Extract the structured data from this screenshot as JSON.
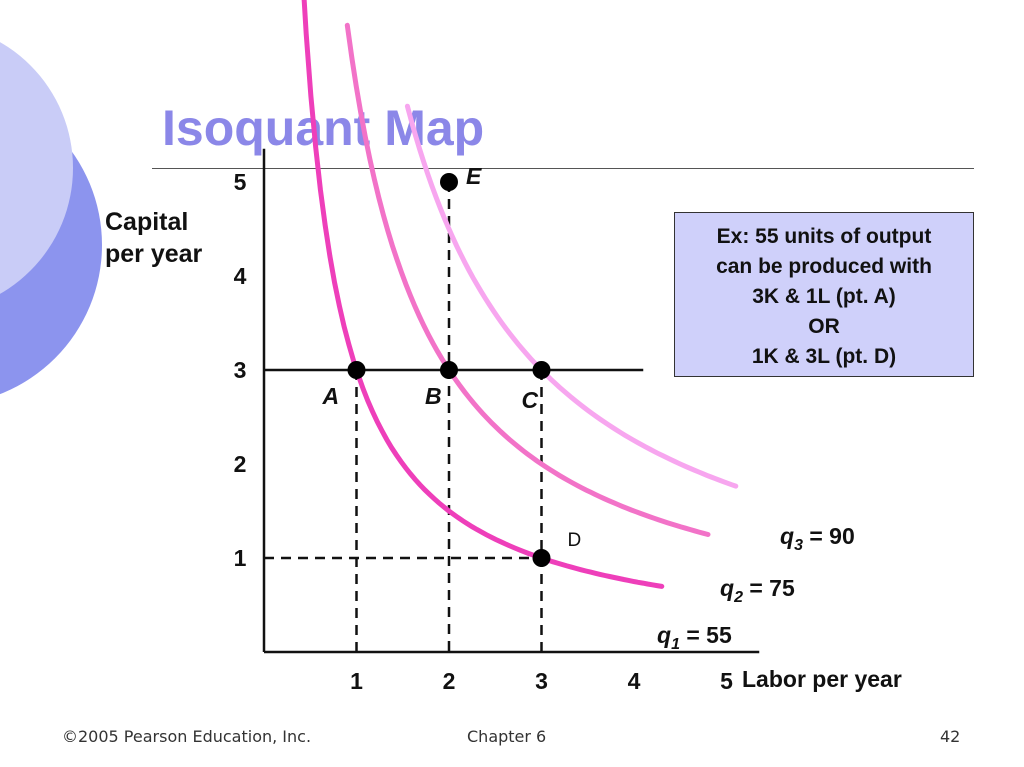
{
  "slide": {
    "title": "Isoquant Map",
    "footer_left": "©2005 Pearson Education, Inc.",
    "footer_center": "Chapter 6",
    "footer_right": "42"
  },
  "colors": {
    "title": "#8b87e8",
    "deco_light": "#c9ccf7",
    "deco_dark": "#8c94ee",
    "infobox_bg": "#cfd0fa",
    "q1": "#ee3fba",
    "q2": "#f273c8",
    "q3": "#f7a6ef"
  },
  "infobox": {
    "lines": [
      "Ex: 55 units of output",
      "can be produced with",
      "3K & 1L (pt. A)",
      "OR",
      "1K & 3L (pt. D)"
    ]
  },
  "chart_data": {
    "type": "line",
    "xlabel": "Labor per year",
    "ylabel_lines": [
      "Capital",
      "per year"
    ],
    "xlim": [
      0,
      5.3
    ],
    "ylim": [
      0,
      5.3
    ],
    "xticks": [
      1,
      2,
      3,
      4,
      5
    ],
    "yticks": [
      1,
      2,
      3,
      4,
      5
    ],
    "grid": false,
    "series": [
      {
        "id": "q1",
        "label_sym": "q",
        "label_sub": "1",
        "label_rest": " = 55",
        "k": 3,
        "x_range": [
          0.2,
          4.3
        ]
      },
      {
        "id": "q2",
        "label_sym": "q",
        "label_sub": "2",
        "label_rest": " = 75",
        "k": 6,
        "x_range": [
          0.9,
          4.8
        ]
      },
      {
        "id": "q3",
        "label_sym": "q",
        "label_sub": "3",
        "label_rest": " = 90",
        "k": 9,
        "x_range": [
          1.55,
          5.1
        ]
      }
    ],
    "points": [
      {
        "name": "A",
        "x": 1,
        "y": 3
      },
      {
        "name": "B",
        "x": 2,
        "y": 3
      },
      {
        "name": "C",
        "x": 3,
        "y": 3
      },
      {
        "name": "D",
        "x": 3,
        "y": 1
      },
      {
        "name": "E",
        "x": 2,
        "y": 5
      }
    ],
    "horizontal_line": {
      "y": 3,
      "x_range": [
        0,
        4.1
      ]
    },
    "dashed_lines": [
      {
        "from": [
          1,
          3
        ],
        "to": [
          1,
          0
        ]
      },
      {
        "from": [
          2,
          5
        ],
        "to": [
          2,
          0
        ]
      },
      {
        "from": [
          3,
          3
        ],
        "to": [
          3,
          0
        ]
      },
      {
        "from": [
          0,
          1
        ],
        "to": [
          3,
          1
        ]
      }
    ]
  }
}
